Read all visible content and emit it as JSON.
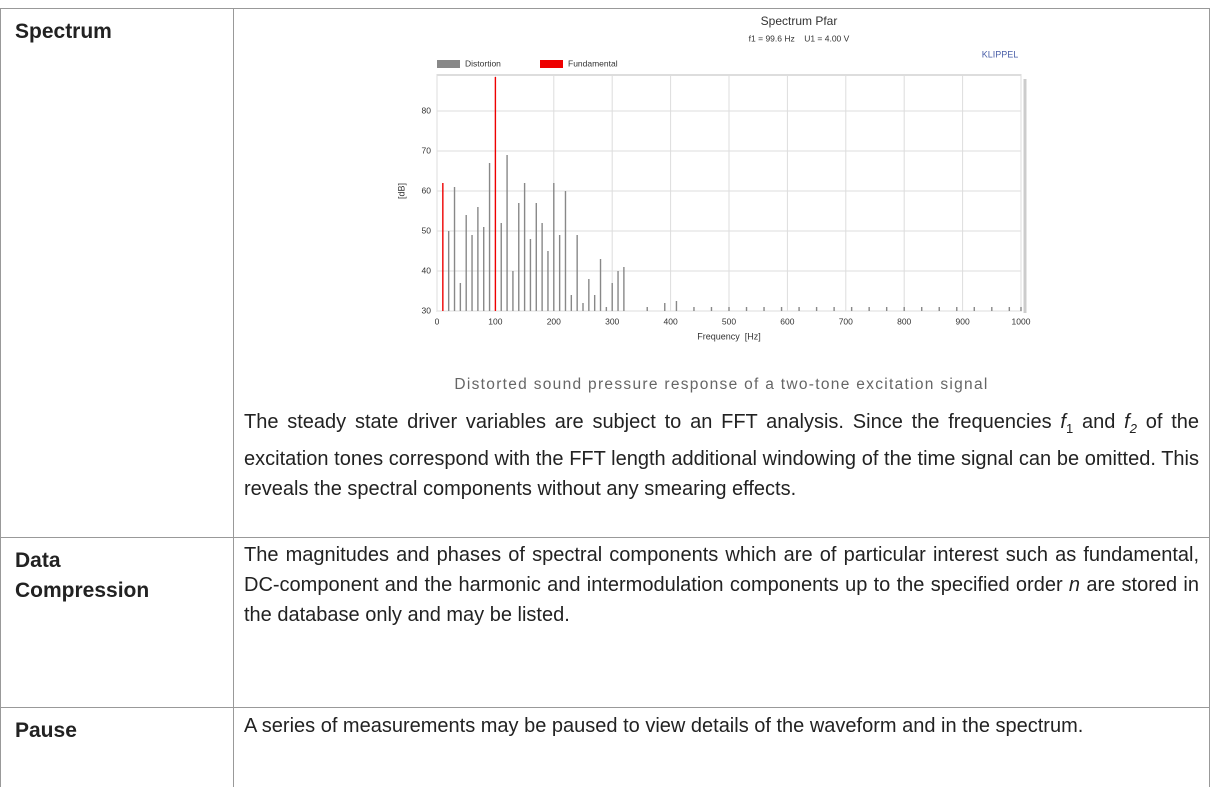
{
  "chart_data": {
    "type": "bar",
    "title": "Spectrum Pfar",
    "subtitle": "f1 = 99.6 Hz    U1 = 4.00 V",
    "annotation": "KLIPPEL",
    "ylabel": "[dB]",
    "xlabel": "Frequency  [Hz]",
    "xlim": [
      0,
      1000
    ],
    "xticks": [
      0,
      100,
      200,
      300,
      400,
      500,
      600,
      700,
      800,
      900,
      1000
    ],
    "ylim": [
      30,
      89
    ],
    "yticks": [
      30,
      40,
      50,
      60,
      70,
      80
    ],
    "grid": true,
    "series": [
      {
        "name": "Distortion",
        "color": "#888888",
        "x": [
          20,
          30,
          40,
          50,
          60,
          70,
          80,
          90,
          110,
          120,
          130,
          140,
          150,
          160,
          170,
          180,
          190,
          200,
          210,
          220,
          230,
          240,
          250,
          260,
          270,
          280,
          290,
          300,
          310,
          320,
          360,
          390,
          410,
          440,
          470,
          500,
          530,
          560,
          590,
          620,
          650,
          680,
          710,
          740,
          770,
          800,
          830,
          860,
          890,
          920,
          950,
          980,
          1000
        ],
        "values": [
          50,
          61,
          37,
          54,
          49,
          56,
          51,
          67,
          52,
          69,
          40,
          57,
          62,
          48,
          57,
          52,
          45,
          62,
          49,
          60,
          34,
          49,
          32,
          38,
          34,
          43,
          31,
          37,
          40,
          41,
          31,
          32,
          32.5,
          31,
          31,
          31,
          31,
          31,
          31,
          31,
          31,
          31,
          31,
          31,
          31,
          31,
          31,
          31,
          31,
          31,
          31,
          31,
          31
        ]
      },
      {
        "name": "Fundamental",
        "color": "#ee0000",
        "x": [
          10,
          100
        ],
        "values": [
          62,
          88.5
        ]
      }
    ]
  },
  "table": {
    "rows": [
      {
        "label": "Spectrum",
        "caption": "Distorted sound pressure response of a two-tone excitation signal",
        "paragraph": [
          "The steady state driver variables are subject to an FFT analysis. Since the frequencies ",
          "f",
          "1",
          " and ",
          "f",
          "2",
          " of the excitation tones correspond with the FFT length additional windowing of the time signal can be omitted. This reveals the spectral components without any smearing effects."
        ]
      },
      {
        "label": "Data Compression",
        "paragraph": [
          "The magnitudes and phases of spectral components which are of particular interest such as fundamental, DC-component and the harmonic and intermodulation components up to the specified order ",
          "n",
          " are stored in the database only and may be listed."
        ]
      },
      {
        "label": "Pause",
        "paragraph": [
          "A series of measurements may be paused to view details of the waveform and in the spectrum."
        ]
      }
    ]
  }
}
